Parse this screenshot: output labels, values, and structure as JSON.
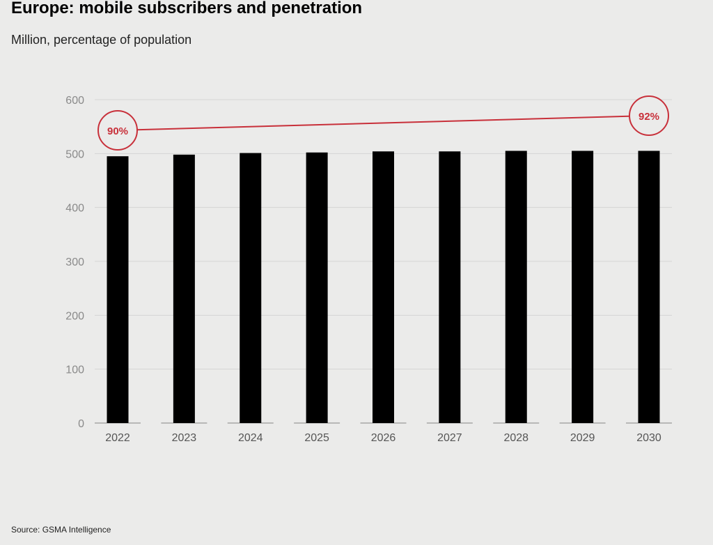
{
  "header": {
    "title": "Europe: mobile subscribers and penetration",
    "subtitle": "Million, percentage of population"
  },
  "footer": {
    "source": "Source: GSMA Intelligence"
  },
  "colors": {
    "bar": "#000000",
    "line": "#c8303a",
    "grid": "#d4d4d4",
    "axis": "#999999"
  },
  "chart_data": {
    "type": "bar",
    "title": "Europe: mobile subscribers and penetration",
    "subtitle": "Million, percentage of population",
    "xlabel": "",
    "ylabel": "",
    "ylim": [
      0,
      600
    ],
    "yticks": [
      0,
      100,
      200,
      300,
      400,
      500,
      600
    ],
    "grid": true,
    "categories": [
      "2022",
      "2023",
      "2024",
      "2025",
      "2026",
      "2027",
      "2028",
      "2029",
      "2030"
    ],
    "series": [
      {
        "name": "Mobile subscribers (million)",
        "type": "bar",
        "values": [
          495,
          498,
          501,
          502,
          504,
          504,
          505,
          505,
          505
        ]
      },
      {
        "name": "Penetration (% of population)",
        "type": "line",
        "endpoints": [
          {
            "category": "2022",
            "value": 90,
            "label": "90%"
          },
          {
            "category": "2030",
            "value": 92,
            "label": "92%"
          }
        ]
      }
    ]
  }
}
